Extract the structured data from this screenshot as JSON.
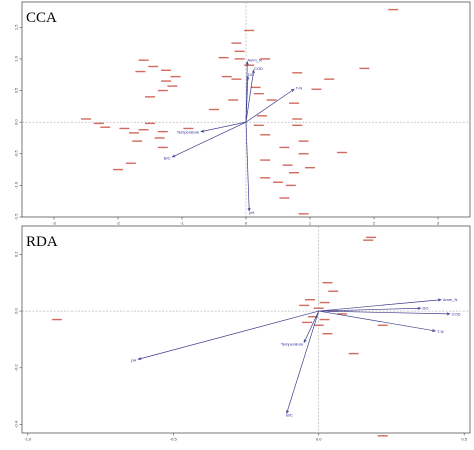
{
  "chart_data": [
    {
      "type": "scatter",
      "title": "CCA",
      "xlabel": "",
      "ylabel": "",
      "xlim": [
        -3.5,
        3.5
      ],
      "ylim": [
        -1.5,
        1.9
      ],
      "x_ticks": [
        -3,
        -2,
        -1,
        0,
        1,
        2,
        3
      ],
      "y_ticks": [
        -1.5,
        -1,
        -0.5,
        0,
        0.5,
        1,
        1.5
      ],
      "x_tick_labels": [
        "-3",
        "-2",
        "-1",
        "0",
        "1",
        "2",
        "3"
      ],
      "y_tick_labels": [
        "-1.5",
        "-1.0",
        "-0.5",
        "0.0",
        "0.5",
        "1.0",
        "1.5"
      ],
      "grid": false,
      "reference_lines": {
        "x": 0,
        "y": 0
      },
      "env_vectors": [
        {
          "name": "Amm_N",
          "x": 0.02,
          "y": 0.95
        },
        {
          "name": "COD",
          "x": 0.12,
          "y": 0.82
        },
        {
          "name": "DO",
          "x": 0.03,
          "y": 0.72
        },
        {
          "name": "T-N",
          "x": 0.75,
          "y": 0.52
        },
        {
          "name": "Temperature",
          "x": -0.7,
          "y": -0.15
        },
        {
          "name": "B/C",
          "x": -1.15,
          "y": -0.55
        },
        {
          "name": "pH",
          "x": 0.05,
          "y": -1.4
        }
      ],
      "species_points": [
        {
          "x": 2.3,
          "y": 1.78
        },
        {
          "x": 0.05,
          "y": 1.45
        },
        {
          "x": -0.15,
          "y": 1.25
        },
        {
          "x": -0.1,
          "y": 1.12
        },
        {
          "x": -0.35,
          "y": 1.02
        },
        {
          "x": -0.1,
          "y": 1.0
        },
        {
          "x": 0.3,
          "y": 1.0
        },
        {
          "x": 0.05,
          "y": 0.9
        },
        {
          "x": -1.6,
          "y": 0.98
        },
        {
          "x": -1.45,
          "y": 0.88
        },
        {
          "x": -1.25,
          "y": 0.82
        },
        {
          "x": -1.65,
          "y": 0.8
        },
        {
          "x": -1.1,
          "y": 0.72
        },
        {
          "x": -1.25,
          "y": 0.65
        },
        {
          "x": -1.15,
          "y": 0.57
        },
        {
          "x": -1.3,
          "y": 0.5
        },
        {
          "x": -1.5,
          "y": 0.4
        },
        {
          "x": -0.5,
          "y": 0.2
        },
        {
          "x": -0.3,
          "y": 0.72
        },
        {
          "x": -0.15,
          "y": 0.68
        },
        {
          "x": 0.15,
          "y": 0.55
        },
        {
          "x": 0.8,
          "y": 0.78
        },
        {
          "x": 1.3,
          "y": 0.68
        },
        {
          "x": 1.85,
          "y": 0.85
        },
        {
          "x": 1.1,
          "y": 0.52
        },
        {
          "x": 0.2,
          "y": 0.45
        },
        {
          "x": 0.4,
          "y": 0.35
        },
        {
          "x": 0.75,
          "y": 0.3
        },
        {
          "x": -0.2,
          "y": 0.35
        },
        {
          "x": 0.25,
          "y": 0.1
        },
        {
          "x": 0.8,
          "y": 0.05
        },
        {
          "x": -2.5,
          "y": 0.05
        },
        {
          "x": -2.3,
          "y": -0.02
        },
        {
          "x": -2.2,
          "y": -0.08
        },
        {
          "x": -1.9,
          "y": -0.1
        },
        {
          "x": -1.6,
          "y": -0.12
        },
        {
          "x": -1.5,
          "y": -0.02
        },
        {
          "x": -1.75,
          "y": -0.17
        },
        {
          "x": -1.35,
          "y": -0.25
        },
        {
          "x": -0.9,
          "y": -0.1
        },
        {
          "x": -1.7,
          "y": -0.3
        },
        {
          "x": -1.3,
          "y": -0.4
        },
        {
          "x": 0.2,
          "y": -0.05
        },
        {
          "x": 0.8,
          "y": -0.05
        },
        {
          "x": 0.3,
          "y": -0.2
        },
        {
          "x": 0.9,
          "y": -0.3
        },
        {
          "x": 0.6,
          "y": -0.4
        },
        {
          "x": 0.9,
          "y": -0.5
        },
        {
          "x": 1.5,
          "y": -0.48
        },
        {
          "x": 0.3,
          "y": -0.6
        },
        {
          "x": 0.65,
          "y": -0.68
        },
        {
          "x": 1.0,
          "y": -0.72
        },
        {
          "x": 0.75,
          "y": -0.8
        },
        {
          "x": 0.3,
          "y": -0.88
        },
        {
          "x": 0.5,
          "y": -0.95
        },
        {
          "x": 0.7,
          "y": -1.0
        },
        {
          "x": 0.6,
          "y": -1.2
        },
        {
          "x": 0.9,
          "y": -1.45
        },
        {
          "x": -1.8,
          "y": -0.65
        },
        {
          "x": -2.0,
          "y": -0.75
        },
        {
          "x": -1.3,
          "y": -0.15
        }
      ]
    },
    {
      "type": "scatter",
      "title": "RDA",
      "xlabel": "",
      "ylabel": "",
      "xlim": [
        -1.02,
        0.52
      ],
      "ylim": [
        -0.43,
        0.3
      ],
      "x_ticks": [
        -1.0,
        -0.5,
        0.0,
        0.5
      ],
      "y_ticks": [
        -0.4,
        -0.2,
        0.0,
        0.2
      ],
      "x_tick_labels": [
        "-1.0",
        "-0.5",
        "0.0",
        "0.5"
      ],
      "y_tick_labels": [
        "-0.4",
        "-0.2",
        "0.0",
        "0.2"
      ],
      "grid": false,
      "reference_lines": {
        "x": 0,
        "y": 0
      },
      "env_vectors": [
        {
          "name": "Amm_N",
          "x": 0.42,
          "y": 0.04
        },
        {
          "name": "DO",
          "x": 0.35,
          "y": 0.01
        },
        {
          "name": "COD",
          "x": 0.45,
          "y": -0.01
        },
        {
          "name": "T-N",
          "x": 0.4,
          "y": -0.07
        },
        {
          "name": "Temperature",
          "x": -0.05,
          "y": -0.11
        },
        {
          "name": "pH",
          "x": -0.62,
          "y": -0.17
        },
        {
          "name": "B/C",
          "x": -0.11,
          "y": -0.36
        }
      ],
      "species_points": [
        {
          "x": 0.18,
          "y": 0.26
        },
        {
          "x": 0.17,
          "y": 0.25
        },
        {
          "x": 0.03,
          "y": 0.1
        },
        {
          "x": 0.05,
          "y": 0.07
        },
        {
          "x": -0.03,
          "y": 0.04
        },
        {
          "x": 0.02,
          "y": 0.03
        },
        {
          "x": -0.05,
          "y": 0.02
        },
        {
          "x": 0.0,
          "y": 0.01
        },
        {
          "x": 0.05,
          "y": 0.0
        },
        {
          "x": 0.08,
          "y": -0.01
        },
        {
          "x": -0.02,
          "y": -0.02
        },
        {
          "x": 0.02,
          "y": -0.03
        },
        {
          "x": -0.04,
          "y": -0.04
        },
        {
          "x": 0.03,
          "y": -0.08
        },
        {
          "x": 0.12,
          "y": -0.15
        },
        {
          "x": 0.22,
          "y": -0.05
        },
        {
          "x": 0.0,
          "y": -0.05
        },
        {
          "x": -0.9,
          "y": -0.03
        },
        {
          "x": 0.22,
          "y": -0.44
        }
      ]
    }
  ]
}
